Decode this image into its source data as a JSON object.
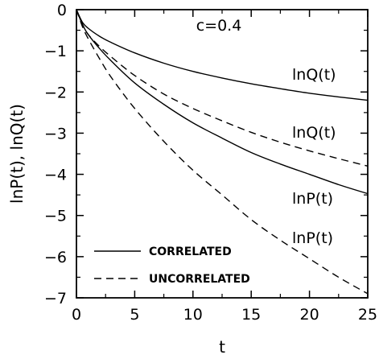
{
  "chart_data": {
    "type": "line",
    "xlabel": "t",
    "ylabel": "lnP(t), lnQ(t)",
    "xlim": [
      0,
      25
    ],
    "ylim": [
      -7,
      0
    ],
    "xticks": [
      0,
      5,
      10,
      15,
      20,
      25
    ],
    "yticks": [
      0,
      -1,
      -2,
      -3,
      -4,
      -5,
      -6,
      -7
    ],
    "grid": false,
    "legend_position": "bottom-left",
    "legend": [
      {
        "label": "CORRELATED",
        "style": "solid"
      },
      {
        "label": "UNCORRELATED",
        "style": "dashed"
      }
    ],
    "annotations": [
      {
        "text": "c=0.4"
      },
      {
        "text": "lnQ(t)"
      },
      {
        "text": "lnQ(t)"
      },
      {
        "text": "lnP(t)"
      },
      {
        "text": "lnP(t)"
      }
    ],
    "series": [
      {
        "quantity": "lnQ(t)",
        "style": "solid",
        "x": [
          0,
          0.5,
          1,
          2,
          3,
          5,
          7.5,
          10,
          12.5,
          15,
          17.5,
          20,
          22.5,
          25
        ],
        "y": [
          0,
          -0.3,
          -0.45,
          -0.65,
          -0.8,
          -1.05,
          -1.3,
          -1.5,
          -1.66,
          -1.8,
          -1.92,
          -2.03,
          -2.12,
          -2.2
        ]
      },
      {
        "quantity": "lnQ(t)",
        "style": "dashed",
        "x": [
          0,
          0.5,
          1,
          2,
          3,
          5,
          7.5,
          10,
          12.5,
          15,
          17.5,
          20,
          22.5,
          25
        ],
        "y": [
          0,
          -0.35,
          -0.6,
          -0.9,
          -1.15,
          -1.6,
          -2.05,
          -2.4,
          -2.7,
          -2.98,
          -3.22,
          -3.43,
          -3.62,
          -3.8
        ]
      },
      {
        "quantity": "lnP(t)",
        "style": "solid",
        "x": [
          0,
          0.5,
          1,
          2,
          3,
          5,
          7.5,
          10,
          12.5,
          15,
          17.5,
          20,
          22.5,
          25
        ],
        "y": [
          0,
          -0.35,
          -0.6,
          -0.95,
          -1.25,
          -1.78,
          -2.3,
          -2.75,
          -3.12,
          -3.47,
          -3.75,
          -4.0,
          -4.25,
          -4.47
        ]
      },
      {
        "quantity": "lnP(t)",
        "style": "dashed",
        "x": [
          0,
          0.5,
          1,
          2,
          3,
          5,
          7.5,
          10,
          12.5,
          15,
          17.5,
          20,
          22.5,
          25
        ],
        "y": [
          0,
          -0.4,
          -0.7,
          -1.2,
          -1.65,
          -2.4,
          -3.2,
          -3.9,
          -4.5,
          -5.1,
          -5.6,
          -6.05,
          -6.5,
          -6.9
        ]
      }
    ]
  }
}
